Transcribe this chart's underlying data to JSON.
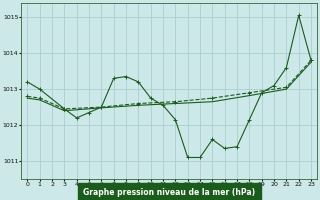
{
  "title": "Graphe pression niveau de la mer (hPa)",
  "bg_color": "#cce8e8",
  "plot_bg": "#cce8e8",
  "grid_color": "#aacece",
  "line_color": "#1a5c1a",
  "xlabel_bg": "#1a5c1a",
  "xlabel_fg": "#ffffff",
  "xlim": [
    -0.5,
    23.5
  ],
  "ylim": [
    1010.5,
    1015.4
  ],
  "yticks": [
    1011,
    1012,
    1013,
    1014,
    1015
  ],
  "xticks": [
    0,
    1,
    2,
    3,
    4,
    5,
    6,
    7,
    8,
    9,
    10,
    11,
    12,
    13,
    14,
    15,
    16,
    17,
    18,
    19,
    20,
    21,
    22,
    23
  ],
  "series1_x": [
    0,
    1,
    3,
    4,
    5,
    6,
    7,
    8,
    9,
    10,
    11,
    12,
    13,
    14,
    15,
    16,
    17,
    18,
    19,
    20,
    21,
    22,
    23
  ],
  "series1_y": [
    1013.2,
    1013.0,
    1012.45,
    1012.2,
    1012.35,
    1012.5,
    1013.3,
    1013.35,
    1013.2,
    1012.75,
    1012.55,
    1012.15,
    1011.1,
    1011.1,
    1011.6,
    1011.35,
    1011.4,
    1012.15,
    1012.9,
    1013.1,
    1013.6,
    1015.05,
    1013.8
  ],
  "series2_x": [
    0,
    1,
    3,
    6,
    9,
    12,
    15,
    18,
    21,
    23
  ],
  "series2_y": [
    1012.8,
    1012.75,
    1012.45,
    1012.5,
    1012.6,
    1012.65,
    1012.75,
    1012.9,
    1013.05,
    1013.8
  ],
  "series3_x": [
    0,
    1,
    3,
    6,
    9,
    12,
    15,
    18,
    21,
    23
  ],
  "series3_y": [
    1012.75,
    1012.7,
    1012.4,
    1012.48,
    1012.55,
    1012.6,
    1012.65,
    1012.82,
    1013.0,
    1013.75
  ]
}
